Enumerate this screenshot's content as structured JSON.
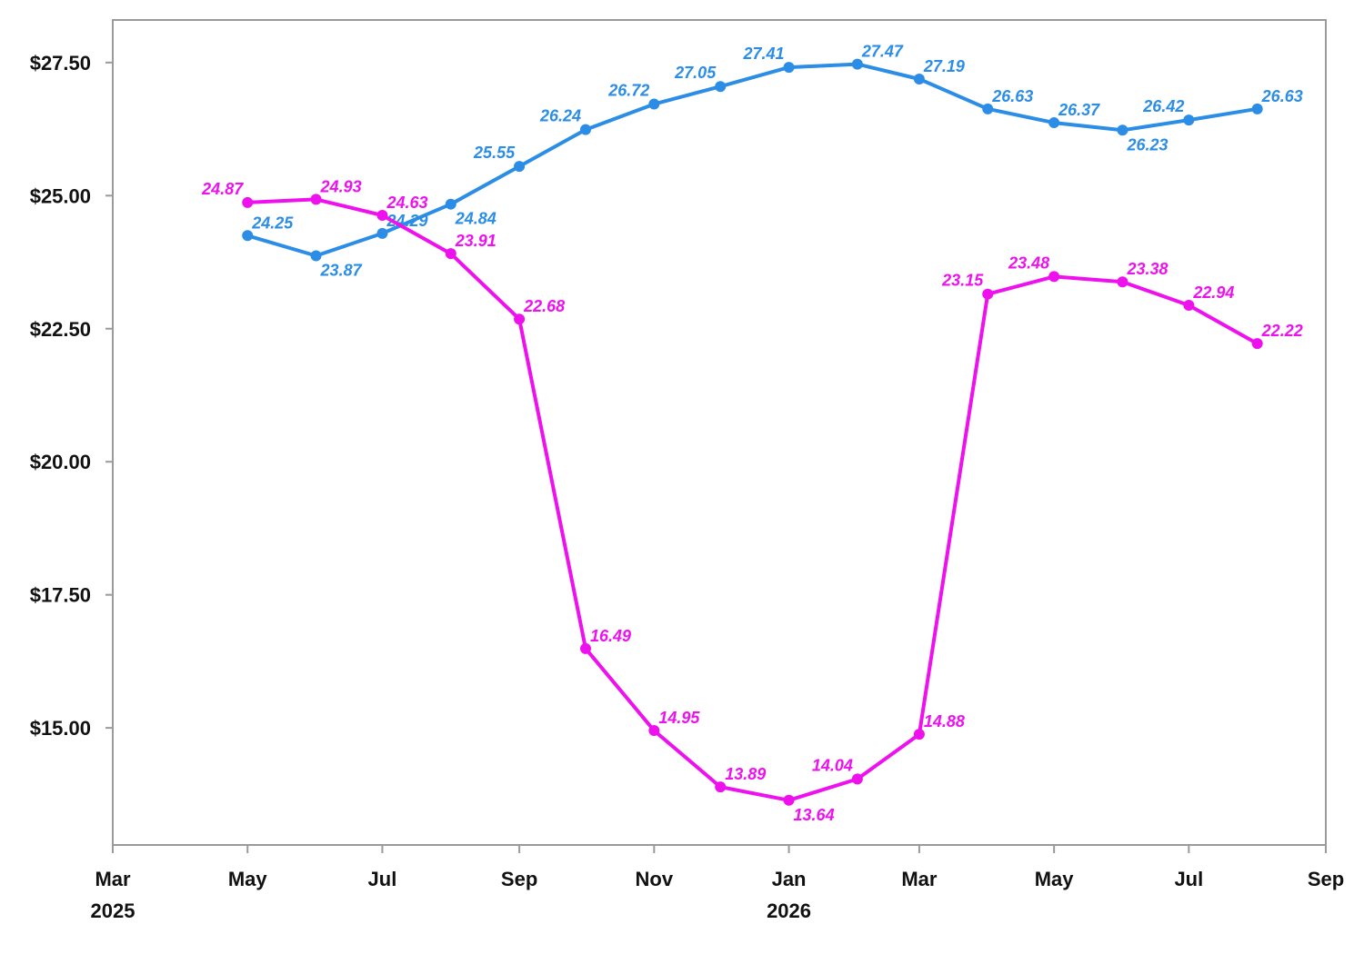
{
  "chart_data": {
    "type": "line",
    "title": "",
    "xlabel": "",
    "ylabel": "",
    "x_range": [
      "2025-03-01",
      "2026-09-01"
    ],
    "ylim": [
      12.8,
      28.3
    ],
    "grid": false,
    "legend": "none",
    "y_ticks": [
      15,
      17.5,
      20,
      22.5,
      25,
      27.5
    ],
    "y_tick_labels": [
      "$15.00",
      "$17.50",
      "$20.00",
      "$22.50",
      "$25.00",
      "$27.50"
    ],
    "x_ticks": [
      {
        "date": "2025-03-01",
        "month": "Mar",
        "year": "2025"
      },
      {
        "date": "2025-05-01",
        "month": "May",
        "year": ""
      },
      {
        "date": "2025-07-01",
        "month": "Jul",
        "year": ""
      },
      {
        "date": "2025-09-01",
        "month": "Sep",
        "year": ""
      },
      {
        "date": "2025-11-01",
        "month": "Nov",
        "year": ""
      },
      {
        "date": "2026-01-01",
        "month": "Jan",
        "year": "2026"
      },
      {
        "date": "2026-03-01",
        "month": "Mar",
        "year": ""
      },
      {
        "date": "2026-05-01",
        "month": "May",
        "year": ""
      },
      {
        "date": "2026-07-01",
        "month": "Jul",
        "year": ""
      },
      {
        "date": "2026-09-01",
        "month": "Sep",
        "year": ""
      }
    ],
    "series": [
      {
        "color": "#2b8de6",
        "points": [
          {
            "x": "2025-05-01",
            "y": 24.25,
            "label": "24.25",
            "pos": "above"
          },
          {
            "x": "2025-06-01",
            "y": 23.87,
            "label": "23.87",
            "pos": "below"
          },
          {
            "x": "2025-07-01",
            "y": 24.29,
            "label": "24.29",
            "pos": "above"
          },
          {
            "x": "2025-08-01",
            "y": 24.84,
            "label": "24.84",
            "pos": "below"
          },
          {
            "x": "2025-09-01",
            "y": 25.55,
            "label": "25.55",
            "pos": "left"
          },
          {
            "x": "2025-10-01",
            "y": 26.24,
            "label": "26.24",
            "pos": "left"
          },
          {
            "x": "2025-11-01",
            "y": 26.72,
            "label": "26.72",
            "pos": "left"
          },
          {
            "x": "2025-12-01",
            "y": 27.05,
            "label": "27.05",
            "pos": "left"
          },
          {
            "x": "2026-01-01",
            "y": 27.41,
            "label": "27.41",
            "pos": "left"
          },
          {
            "x": "2026-02-01",
            "y": 27.47,
            "label": "27.47",
            "pos": "above"
          },
          {
            "x": "2026-03-01",
            "y": 27.19,
            "label": "27.19",
            "pos": "above"
          },
          {
            "x": "2026-04-01",
            "y": 26.63,
            "label": "26.63",
            "pos": "above"
          },
          {
            "x": "2026-05-01",
            "y": 26.37,
            "label": "26.37",
            "pos": "above"
          },
          {
            "x": "2026-06-01",
            "y": 26.23,
            "label": "26.23",
            "pos": "below"
          },
          {
            "x": "2026-07-01",
            "y": 26.42,
            "label": "26.42",
            "pos": "left"
          },
          {
            "x": "2026-08-01",
            "y": 26.63,
            "label": "26.63",
            "pos": "above"
          }
        ]
      },
      {
        "color": "#ee11ee",
        "points": [
          {
            "x": "2025-05-01",
            "y": 24.87,
            "label": "24.87",
            "pos": "left"
          },
          {
            "x": "2025-06-01",
            "y": 24.93,
            "label": "24.93",
            "pos": "above"
          },
          {
            "x": "2025-07-01",
            "y": 24.63,
            "label": "24.63",
            "pos": "above"
          },
          {
            "x": "2025-08-01",
            "y": 23.91,
            "label": "23.91",
            "pos": "above"
          },
          {
            "x": "2025-09-01",
            "y": 22.68,
            "label": "22.68",
            "pos": "above"
          },
          {
            "x": "2025-10-01",
            "y": 16.49,
            "label": "16.49",
            "pos": "above"
          },
          {
            "x": "2025-11-01",
            "y": 14.95,
            "label": "14.95",
            "pos": "above"
          },
          {
            "x": "2025-12-01",
            "y": 13.89,
            "label": "13.89",
            "pos": "above"
          },
          {
            "x": "2026-01-01",
            "y": 13.64,
            "label": "13.64",
            "pos": "below"
          },
          {
            "x": "2026-02-01",
            "y": 14.04,
            "label": "14.04",
            "pos": "left"
          },
          {
            "x": "2026-03-01",
            "y": 14.88,
            "label": "14.88",
            "pos": "above"
          },
          {
            "x": "2026-04-01",
            "y": 23.15,
            "label": "23.15",
            "pos": "left"
          },
          {
            "x": "2026-05-01",
            "y": 23.48,
            "label": "23.48",
            "pos": "left"
          },
          {
            "x": "2026-06-01",
            "y": 23.38,
            "label": "23.38",
            "pos": "above"
          },
          {
            "x": "2026-07-01",
            "y": 22.94,
            "label": "22.94",
            "pos": "above"
          },
          {
            "x": "2026-08-01",
            "y": 22.22,
            "label": "22.22",
            "pos": "above"
          }
        ]
      }
    ]
  }
}
